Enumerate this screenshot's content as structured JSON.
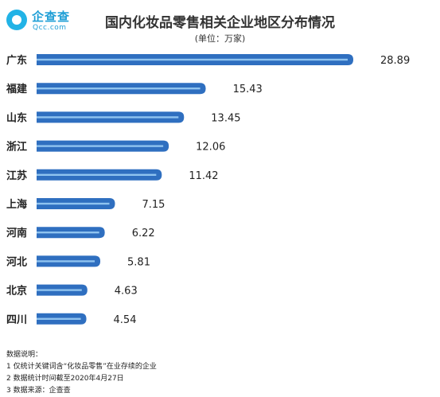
{
  "logo": {
    "name": "企查查",
    "sub": "Qcc.com"
  },
  "chart_data": {
    "type": "bar",
    "orientation": "horizontal",
    "title": "国内化妆品零售相关企业地区分布情况",
    "subtitle": "(单位：万家)",
    "categories": [
      "广东",
      "福建",
      "山东",
      "浙江",
      "江苏",
      "上海",
      "河南",
      "河北",
      "北京",
      "四川"
    ],
    "values": [
      28.89,
      15.43,
      13.45,
      12.06,
      11.42,
      7.15,
      6.22,
      5.81,
      4.63,
      4.54
    ],
    "value_labels": [
      "28.89",
      "15.43",
      "13.45",
      "12.06",
      "11.42",
      "7.15",
      "6.22",
      "5.81",
      "4.63",
      "4.54"
    ],
    "xlim": [
      0,
      28.89
    ],
    "grid": false,
    "bar_color": "#2f6fc0",
    "highlight_color": "#8fc3ef"
  },
  "notes": {
    "heading": "数据说明：",
    "items": [
      "1 仅统计关键词含“化妆品零售”在业存续的企业",
      "2 数据统计时间截至2020年4月27日",
      "3 数据来源：企查查"
    ]
  }
}
